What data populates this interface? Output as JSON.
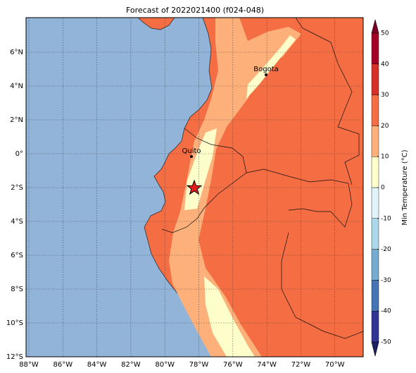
{
  "title": "Forecast of 2022021400 (f024-048)",
  "map": {
    "lon_ticks": [
      {
        "value": -88,
        "label": "88°W"
      },
      {
        "value": -86,
        "label": "86°W"
      },
      {
        "value": -84,
        "label": "84°W"
      },
      {
        "value": -82,
        "label": "82°W"
      },
      {
        "value": -80,
        "label": "80°W"
      },
      {
        "value": -78,
        "label": "78°W"
      },
      {
        "value": -76,
        "label": "76°W"
      },
      {
        "value": -74,
        "label": "74°W"
      },
      {
        "value": -72,
        "label": "72°W"
      },
      {
        "value": -70,
        "label": "70°W"
      }
    ],
    "lat_ticks": [
      {
        "value": 6,
        "label": "6°N"
      },
      {
        "value": 4,
        "label": "4°N"
      },
      {
        "value": 2,
        "label": "2°N"
      },
      {
        "value": 0,
        "label": "0°"
      },
      {
        "value": -2,
        "label": "2°S"
      },
      {
        "value": -4,
        "label": "4°S"
      },
      {
        "value": -6,
        "label": "6°S"
      },
      {
        "value": -8,
        "label": "8°S"
      },
      {
        "value": -10,
        "label": "10°S"
      },
      {
        "value": -12,
        "label": "12°S"
      }
    ],
    "cities": [
      "Bogota",
      "Quito"
    ]
  },
  "colorbar": {
    "label": "Min Temperature (°C)",
    "ticks": [
      -50,
      -40,
      -30,
      -20,
      -10,
      0,
      10,
      20,
      30,
      40,
      50
    ],
    "colors": [
      "#313695",
      "#4575b4",
      "#74add1",
      "#abd9e9",
      "#e0f3f8",
      "#fefecb",
      "#fdb07a",
      "#f46d43",
      "#d73027",
      "#a50026"
    ]
  }
}
